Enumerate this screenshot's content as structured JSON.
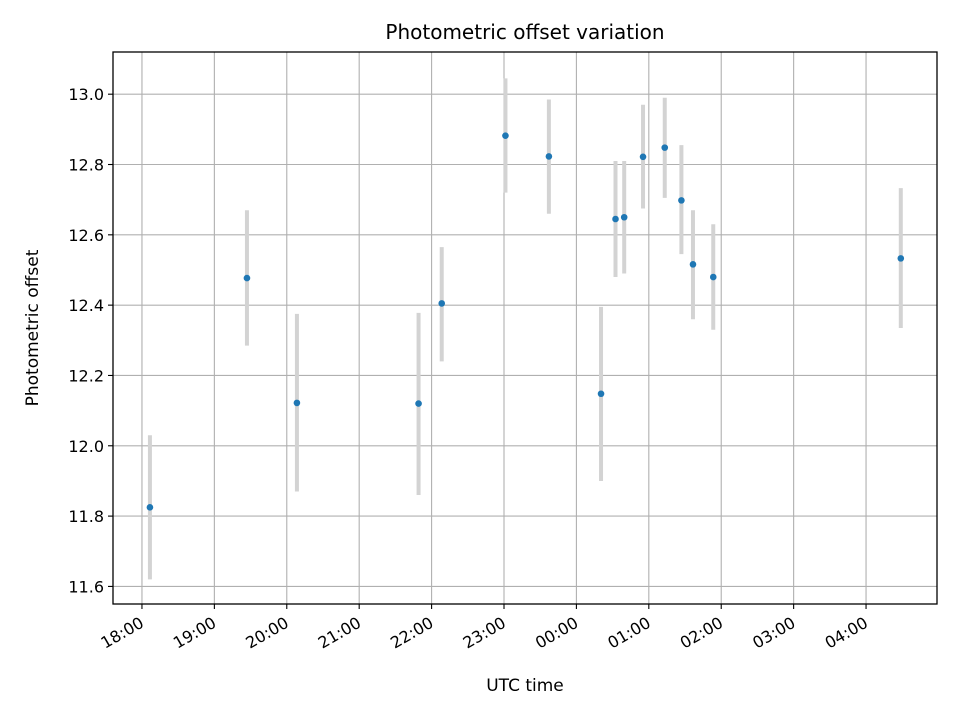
{
  "chart_data": {
    "type": "scatter",
    "title": "Photometric offset variation",
    "xlabel": "UTC time",
    "ylabel": "Photometric offset",
    "x_tick_labels": [
      "18:00",
      "19:00",
      "20:00",
      "21:00",
      "22:00",
      "23:00",
      "00:00",
      "01:00",
      "02:00",
      "03:00",
      "04:00"
    ],
    "y_tick_labels": [
      "11.6",
      "11.8",
      "12.0",
      "12.2",
      "12.4",
      "12.6",
      "12.8",
      "13.0"
    ],
    "y_ticks": [
      11.6,
      11.8,
      12.0,
      12.2,
      12.4,
      12.6,
      12.8,
      13.0
    ],
    "ylim": [
      11.55,
      13.12
    ],
    "x_range_hours": [
      17.6,
      28.98
    ],
    "grid": true,
    "marker_color": "#1f77b4",
    "errorbar_color": "#d3d3d3",
    "points": [
      {
        "time": "18:07",
        "hour": 18.11,
        "y": 11.825,
        "yerr_low": 11.62,
        "yerr_high": 12.03
      },
      {
        "time": "19:27",
        "hour": 19.45,
        "y": 12.477,
        "yerr_low": 12.285,
        "yerr_high": 12.67
      },
      {
        "time": "20:08",
        "hour": 20.14,
        "y": 12.122,
        "yerr_low": 11.87,
        "yerr_high": 12.375
      },
      {
        "time": "21:49",
        "hour": 21.82,
        "y": 12.12,
        "yerr_low": 11.86,
        "yerr_high": 12.378
      },
      {
        "time": "22:08",
        "hour": 22.14,
        "y": 12.405,
        "yerr_low": 12.24,
        "yerr_high": 12.565
      },
      {
        "time": "23:01",
        "hour": 23.02,
        "y": 12.882,
        "yerr_low": 12.72,
        "yerr_high": 13.045
      },
      {
        "time": "23:37",
        "hour": 23.62,
        "y": 12.823,
        "yerr_low": 12.66,
        "yerr_high": 12.985
      },
      {
        "time": "00:20",
        "hour": 24.34,
        "y": 12.148,
        "yerr_low": 11.9,
        "yerr_high": 12.395
      },
      {
        "time": "00:32",
        "hour": 24.54,
        "y": 12.645,
        "yerr_low": 12.48,
        "yerr_high": 12.81
      },
      {
        "time": "00:39",
        "hour": 24.66,
        "y": 12.65,
        "yerr_low": 12.49,
        "yerr_high": 12.81
      },
      {
        "time": "00:55",
        "hour": 24.92,
        "y": 12.822,
        "yerr_low": 12.675,
        "yerr_high": 12.97
      },
      {
        "time": "01:13",
        "hour": 25.22,
        "y": 12.848,
        "yerr_low": 12.705,
        "yerr_high": 12.99
      },
      {
        "time": "01:27",
        "hour": 25.45,
        "y": 12.698,
        "yerr_low": 12.545,
        "yerr_high": 12.855
      },
      {
        "time": "01:36",
        "hour": 25.61,
        "y": 12.516,
        "yerr_low": 12.36,
        "yerr_high": 12.67
      },
      {
        "time": "01:53",
        "hour": 25.89,
        "y": 12.48,
        "yerr_low": 12.33,
        "yerr_high": 12.63
      },
      {
        "time": "04:29",
        "hour": 28.48,
        "y": 12.533,
        "yerr_low": 12.335,
        "yerr_high": 12.733
      }
    ]
  }
}
